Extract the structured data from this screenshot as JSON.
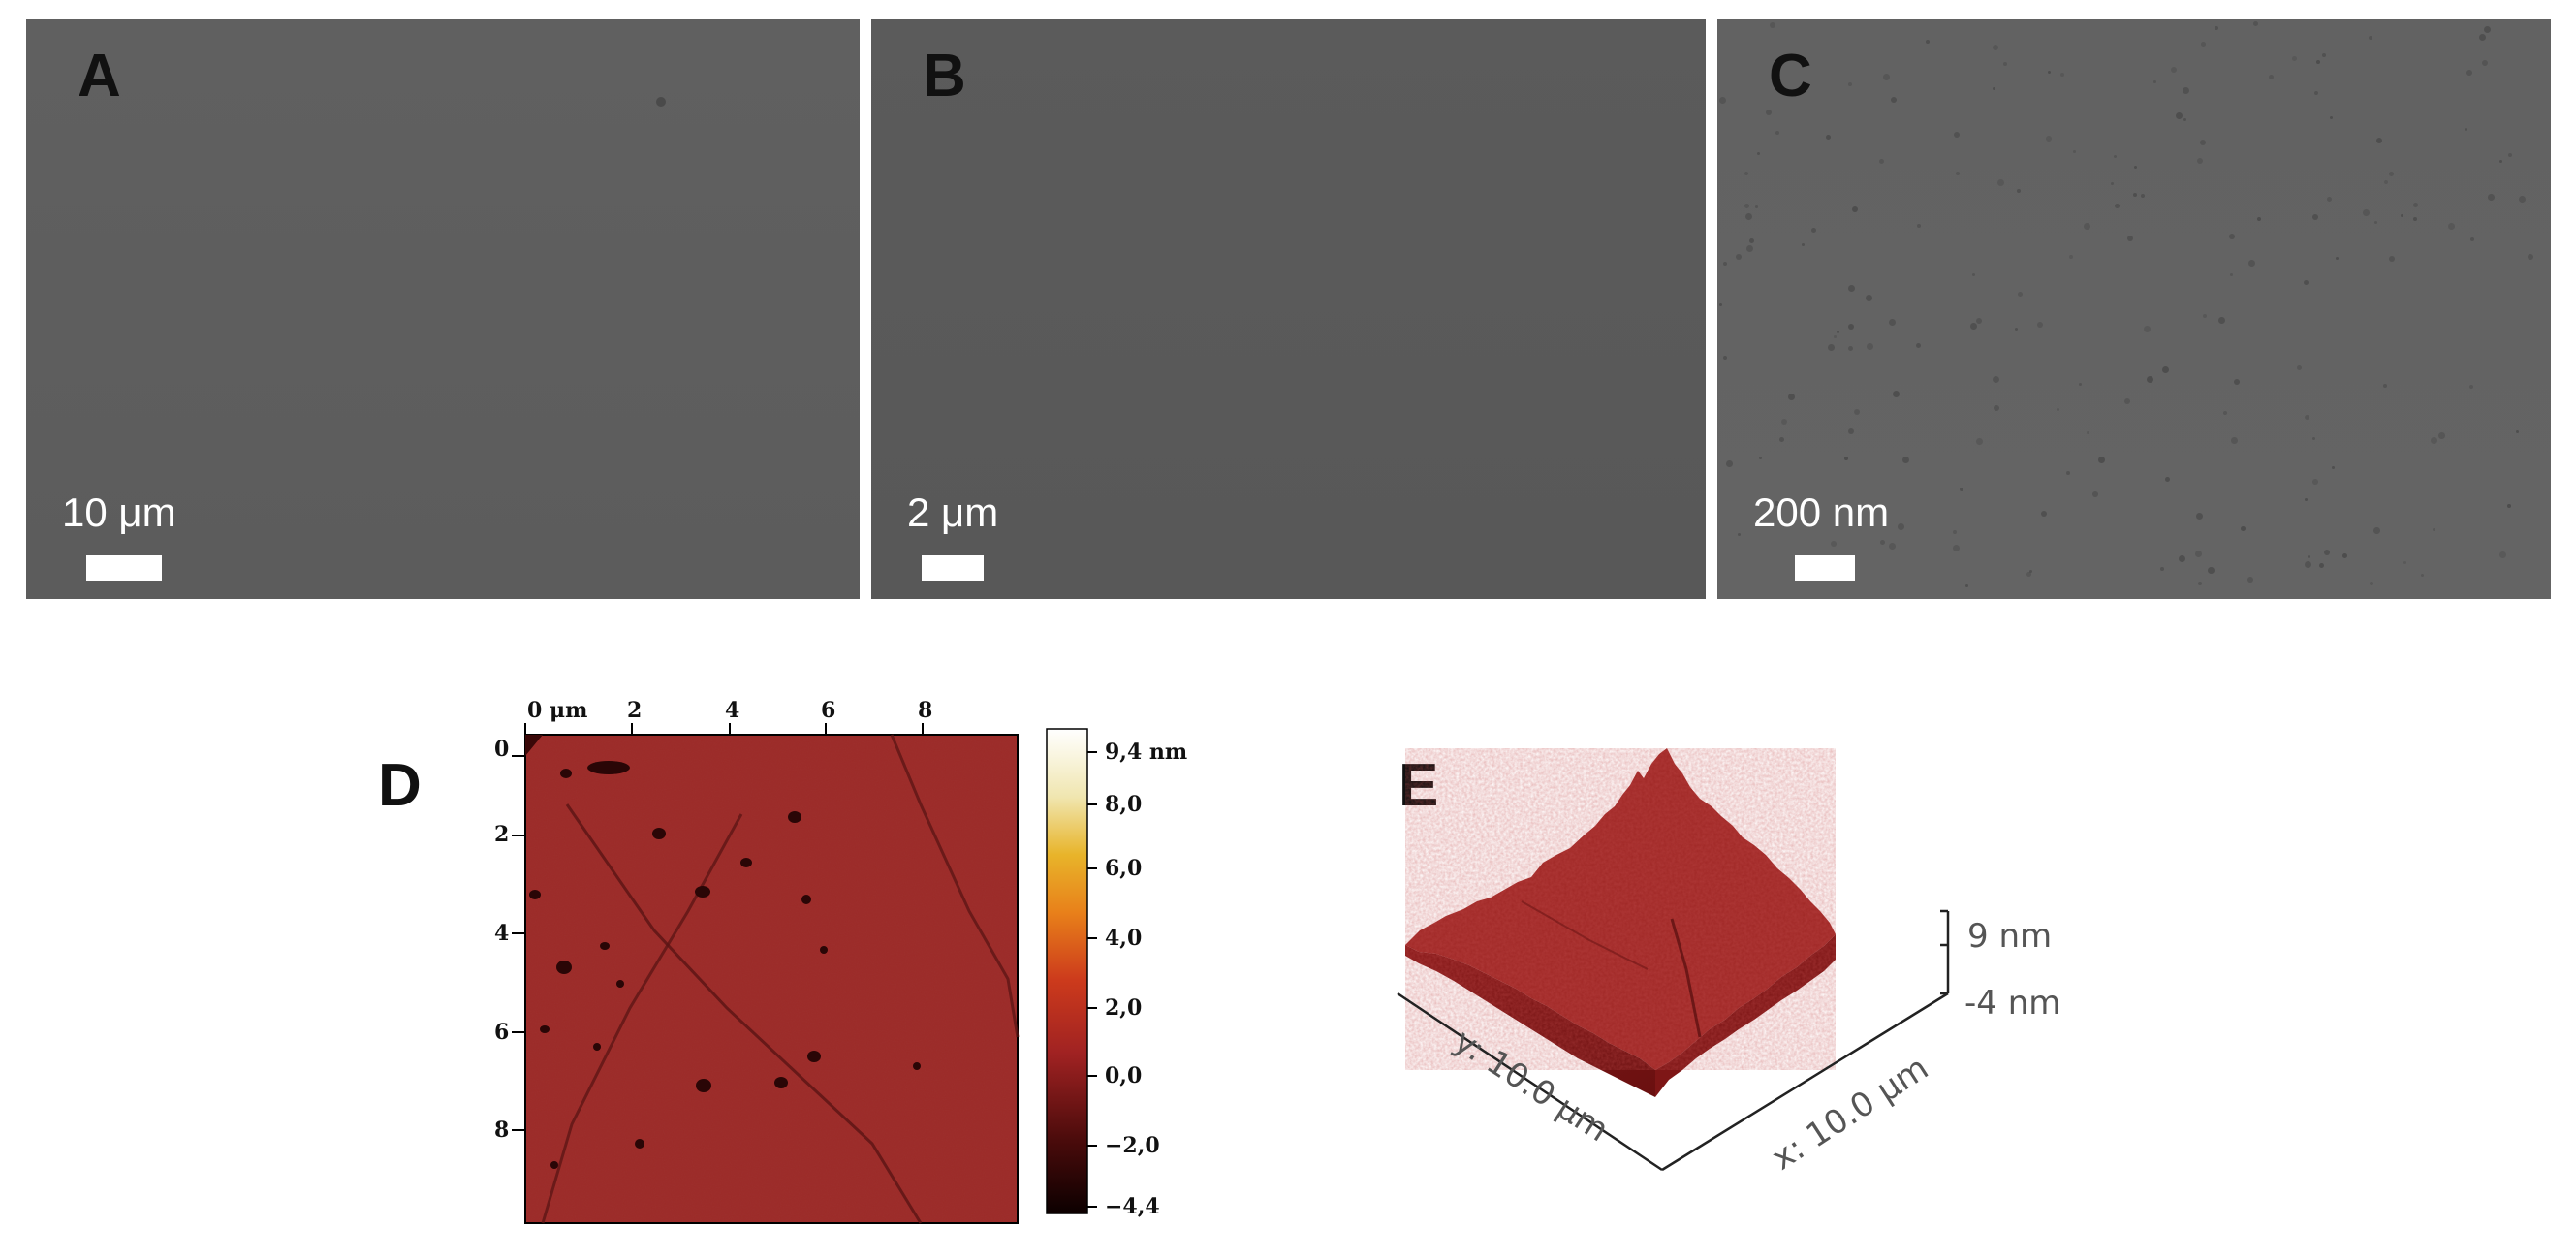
{
  "panels": {
    "A": {
      "letter": "A",
      "scale": "10 μm"
    },
    "B": {
      "letter": "B",
      "scale": "2 μm"
    },
    "C": {
      "letter": "C",
      "scale": "200 nm"
    },
    "D": {
      "letter": "D",
      "x_ticks": [
        "0 μm",
        "2",
        "4",
        "6",
        "8"
      ],
      "y_ticks": [
        "0",
        "2",
        "4",
        "6",
        "8"
      ],
      "colorbar_ticks": [
        "9,4 nm",
        "8,0",
        "6,0",
        "4,0",
        "2,0",
        "0,0",
        "−2,0",
        "−4,4"
      ]
    },
    "E": {
      "letter": "E",
      "z_max": "9 nm",
      "z_min": "-4 nm",
      "y_axis": "y: 10.0 μm",
      "x_axis": "x: 10.0 μm"
    }
  },
  "colors": {
    "sem_gray": "#5d5d5d",
    "afm_red": "#9c2424",
    "afm_dark": "#1a0606"
  }
}
